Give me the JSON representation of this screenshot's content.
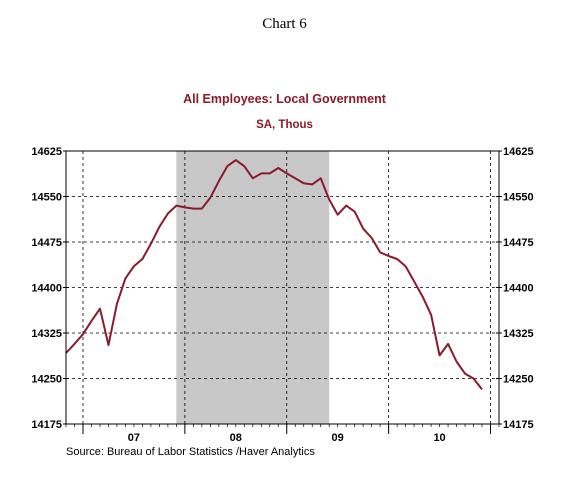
{
  "header": {
    "chart_label": "Chart 6"
  },
  "source": "Source:  Bureau of Labor Statistics /Haver Analytics",
  "colors": {
    "series": "#8b1a2b",
    "title": "#8b1a2b",
    "recession_shade": "#c8c8c8"
  },
  "chart_data": {
    "type": "line",
    "title": "All Employees: Local Government",
    "subtitle": "SA, Thous",
    "xlabel": "",
    "ylabel": "",
    "ylim": [
      14175,
      14625
    ],
    "yticks": [
      14625,
      14550,
      14475,
      14400,
      14325,
      14250,
      14175
    ],
    "x_domain": [
      "2006-11",
      "2011-02"
    ],
    "year_labels": [
      {
        "label": "07",
        "date": "2007-07"
      },
      {
        "label": "08",
        "date": "2008-07"
      },
      {
        "label": "09",
        "date": "2009-07"
      },
      {
        "label": "10",
        "date": "2010-07"
      }
    ],
    "year_boundaries": [
      "2007-01",
      "2008-01",
      "2009-01",
      "2010-01",
      "2011-01"
    ],
    "recession": {
      "start": "2007-12",
      "end": "2009-06"
    },
    "grid": true,
    "right_axis": true,
    "series": [
      {
        "name": "",
        "points": [
          [
            "2006-11",
            14292
          ],
          [
            "2006-12",
            14307
          ],
          [
            "2007-01",
            14323
          ],
          [
            "2007-02",
            14345
          ],
          [
            "2007-03",
            14365
          ],
          [
            "2007-04",
            14305
          ],
          [
            "2007-05",
            14373
          ],
          [
            "2007-06",
            14415
          ],
          [
            "2007-07",
            14435
          ],
          [
            "2007-08",
            14447
          ],
          [
            "2007-09",
            14472
          ],
          [
            "2007-10",
            14500
          ],
          [
            "2007-11",
            14522
          ],
          [
            "2007-12",
            14535
          ],
          [
            "2008-01",
            14532
          ],
          [
            "2008-02",
            14530
          ],
          [
            "2008-03",
            14530
          ],
          [
            "2008-04",
            14548
          ],
          [
            "2008-05",
            14575
          ],
          [
            "2008-06",
            14600
          ],
          [
            "2008-07",
            14610
          ],
          [
            "2008-08",
            14600
          ],
          [
            "2008-09",
            14580
          ],
          [
            "2008-10",
            14588
          ],
          [
            "2008-11",
            14588
          ],
          [
            "2008-12",
            14597
          ],
          [
            "2009-01",
            14588
          ],
          [
            "2009-02",
            14580
          ],
          [
            "2009-03",
            14572
          ],
          [
            "2009-04",
            14570
          ],
          [
            "2009-05",
            14580
          ],
          [
            "2009-06",
            14545
          ],
          [
            "2009-07",
            14520
          ],
          [
            "2009-08",
            14535
          ],
          [
            "2009-09",
            14525
          ],
          [
            "2009-10",
            14497
          ],
          [
            "2009-11",
            14482
          ],
          [
            "2009-12",
            14458
          ],
          [
            "2010-01",
            14452
          ],
          [
            "2010-02",
            14447
          ],
          [
            "2010-03",
            14435
          ],
          [
            "2010-04",
            14410
          ],
          [
            "2010-05",
            14385
          ],
          [
            "2010-06",
            14355
          ],
          [
            "2010-07",
            14288
          ],
          [
            "2010-08",
            14307
          ],
          [
            "2010-09",
            14278
          ],
          [
            "2010-10",
            14258
          ],
          [
            "2010-11",
            14250
          ],
          [
            "2010-12",
            14232
          ]
        ]
      }
    ]
  }
}
